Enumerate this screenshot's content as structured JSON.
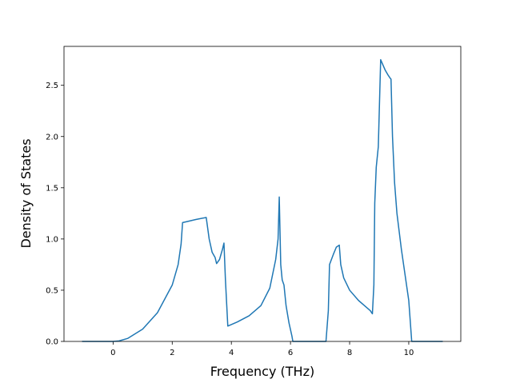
{
  "chart_data": {
    "type": "line",
    "x_label": "Frequency (THz)",
    "y_label": "Density of States",
    "x": [
      -1.05,
      0,
      0.2,
      0.5,
      1.0,
      1.5,
      2.0,
      2.2,
      2.3,
      2.35,
      2.5,
      2.8,
      3.15,
      3.25,
      3.35,
      3.45,
      3.5,
      3.6,
      3.7,
      3.75,
      3.8,
      3.88,
      4.2,
      4.6,
      5.0,
      5.3,
      5.5,
      5.58,
      5.62,
      5.67,
      5.72,
      5.78,
      5.85,
      5.95,
      6.05,
      6.08,
      7.2,
      7.28,
      7.32,
      7.45,
      7.55,
      7.65,
      7.7,
      7.8,
      8.0,
      8.3,
      8.7,
      8.77,
      8.82,
      8.85,
      8.9,
      8.97,
      9.05,
      9.2,
      9.3,
      9.37,
      9.4,
      9.45,
      9.52,
      9.6,
      9.75,
      9.9,
      10.0,
      10.1,
      11.15
    ],
    "series": [
      {
        "color": "#1f77b4",
        "values": [
          0,
          0,
          0.005,
          0.03,
          0.12,
          0.28,
          0.55,
          0.75,
          0.95,
          1.16,
          1.17,
          1.19,
          1.21,
          1.0,
          0.87,
          0.82,
          0.76,
          0.8,
          0.9,
          0.96,
          0.6,
          0.15,
          0.19,
          0.25,
          0.35,
          0.52,
          0.8,
          1.0,
          1.41,
          0.75,
          0.6,
          0.55,
          0.35,
          0.18,
          0.05,
          0,
          0,
          0.3,
          0.75,
          0.85,
          0.92,
          0.94,
          0.75,
          0.62,
          0.5,
          0.4,
          0.3,
          0.27,
          0.55,
          1.35,
          1.7,
          1.9,
          2.75,
          2.65,
          2.6,
          2.57,
          2.56,
          2.0,
          1.55,
          1.25,
          0.9,
          0.6,
          0.4,
          0,
          0
        ]
      }
    ],
    "xlim": [
      -1.66,
      11.76
    ],
    "ylim": [
      0,
      2.88
    ],
    "xticks": [
      0,
      2,
      4,
      6,
      8,
      10
    ],
    "yticks": [
      {
        "value": 0,
        "label": "0.0"
      },
      {
        "value": 0.5,
        "label": "0.5"
      },
      {
        "value": 1,
        "label": "1.0"
      },
      {
        "value": 1.5,
        "label": "1.5"
      },
      {
        "value": 2,
        "label": "2.0"
      },
      {
        "value": 2.5,
        "label": "2.5"
      }
    ]
  }
}
